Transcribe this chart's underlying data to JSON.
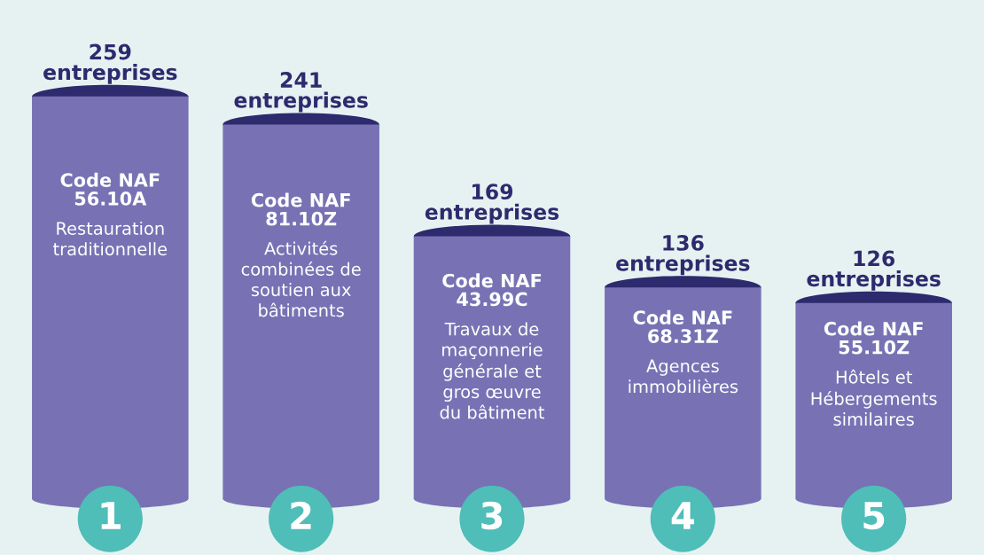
{
  "chart_data": {
    "type": "bar",
    "categories": [
      "Code NAF\n56.10A",
      "Code NAF\n81.10Z",
      "Code NAF\n43.99C",
      "Code NAF\n68.31Z",
      "Code NAF\n55.10Z"
    ],
    "values": [
      259,
      241,
      169,
      136,
      126
    ],
    "color": "#7872b4",
    "value_labels": [
      "259\nentreprises",
      "241\nentreprises",
      "169\nentreprises",
      "136\nentreprises",
      "126\nentreprises"
    ],
    "annotations": [
      "Restauration\ntraditionnelle",
      "Activités\ncombinées de\nsoutien aux\nbâtiments",
      "Travaux de\nmaçonnerie\ngénérale et\ngros œuvre\ndu bâtiment",
      "Agences\nimmobilières",
      "Hôtels et\nHébergements\nsimilaires",
      "1",
      "2",
      "3",
      "4",
      "5"
    ]
  }
}
